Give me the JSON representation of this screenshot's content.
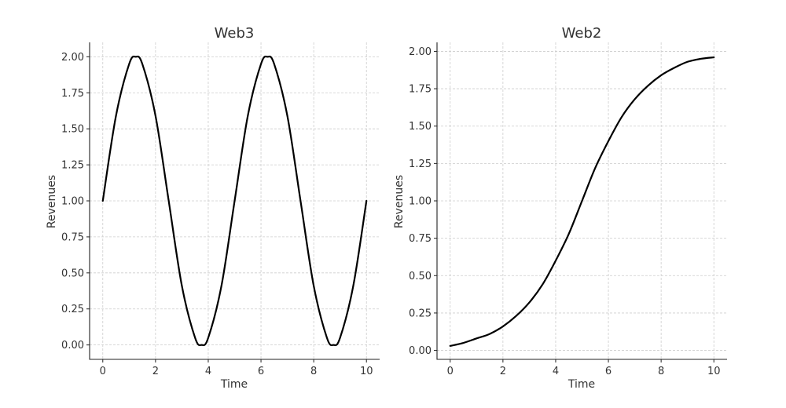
{
  "chart_data": [
    {
      "type": "line",
      "title": "Web3",
      "xlabel": "Time",
      "ylabel": "Revenues",
      "xlim": [
        -0.5,
        10.5
      ],
      "ylim": [
        -0.1,
        2.1
      ],
      "xticks": [
        0,
        2,
        4,
        6,
        8,
        10
      ],
      "yticks": [
        0.0,
        0.25,
        0.5,
        0.75,
        1.0,
        1.25,
        1.5,
        1.75,
        2.0
      ],
      "xtick_labels": [
        "0",
        "2",
        "4",
        "6",
        "8",
        "10"
      ],
      "ytick_labels": [
        "0.00",
        "0.25",
        "0.50",
        "0.75",
        "1.00",
        "1.25",
        "1.50",
        "1.75",
        "2.00"
      ],
      "grid": true,
      "series": [
        {
          "color": "#000000",
          "x": [
            0,
            0.5,
            1,
            1.25,
            1.5,
            2,
            2.5,
            3,
            3.5,
            3.75,
            4,
            4.5,
            5,
            5.5,
            6,
            6.25,
            6.5,
            7,
            7.5,
            8,
            8.5,
            8.75,
            9,
            9.5,
            10
          ],
          "y": [
            1.0,
            1.59,
            1.95,
            2.0,
            1.95,
            1.59,
            1.0,
            0.41,
            0.05,
            0.0,
            0.05,
            0.41,
            1.0,
            1.59,
            1.95,
            2.0,
            1.95,
            1.59,
            1.0,
            0.41,
            0.05,
            0.0,
            0.05,
            0.41,
            1.0
          ]
        }
      ]
    },
    {
      "type": "line",
      "title": "Web2",
      "xlabel": "Time",
      "ylabel": "Revenues",
      "xlim": [
        -0.5,
        10.5
      ],
      "ylim": [
        -0.06,
        2.06
      ],
      "xticks": [
        0,
        2,
        4,
        6,
        8,
        10
      ],
      "yticks": [
        0.0,
        0.25,
        0.5,
        0.75,
        1.0,
        1.25,
        1.5,
        1.75,
        2.0
      ],
      "xtick_labels": [
        "0",
        "2",
        "4",
        "6",
        "8",
        "10"
      ],
      "ytick_labels": [
        "0.00",
        "0.25",
        "0.50",
        "0.75",
        "1.00",
        "1.25",
        "1.50",
        "1.75",
        "2.00"
      ],
      "grid": true,
      "series": [
        {
          "color": "#000000",
          "x": [
            0,
            0.5,
            1,
            1.5,
            2,
            2.5,
            3,
            3.5,
            4,
            4.5,
            5,
            5.5,
            6,
            6.5,
            7,
            7.5,
            8,
            8.5,
            9,
            9.5,
            10
          ],
          "y": [
            0.03,
            0.05,
            0.08,
            0.11,
            0.16,
            0.23,
            0.32,
            0.44,
            0.6,
            0.78,
            1.0,
            1.22,
            1.4,
            1.56,
            1.68,
            1.77,
            1.84,
            1.89,
            1.93,
            1.95,
            1.96
          ]
        }
      ]
    }
  ]
}
